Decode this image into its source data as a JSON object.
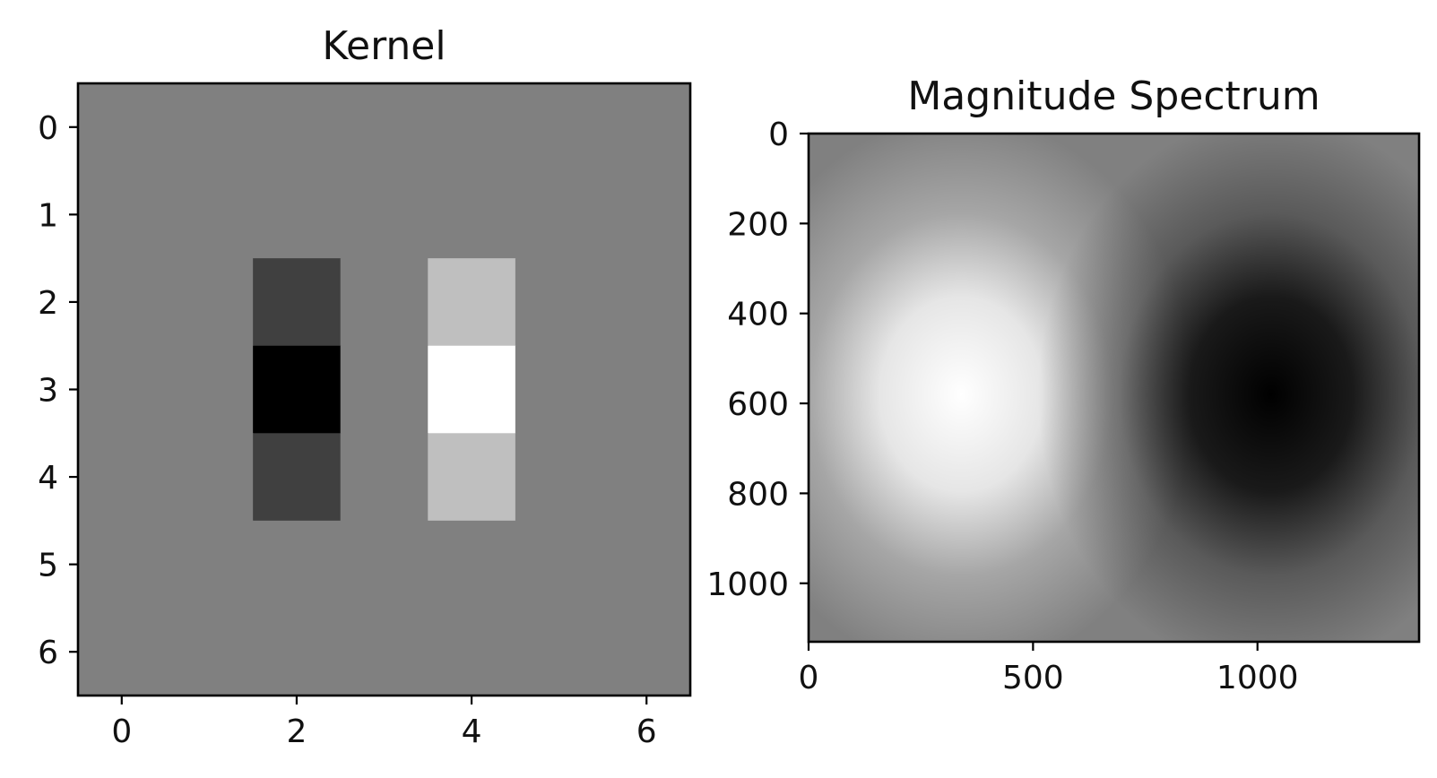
{
  "chart_data": [
    {
      "type": "heatmap",
      "title": "Kernel",
      "colormap": "gray",
      "value_range": [
        -2,
        2
      ],
      "values": [
        [
          0,
          0,
          0,
          0,
          0,
          0,
          0
        ],
        [
          0,
          0,
          0,
          0,
          0,
          0,
          0
        ],
        [
          0,
          0,
          -1,
          0,
          1,
          0,
          0
        ],
        [
          0,
          0,
          -2,
          0,
          2,
          0,
          0
        ],
        [
          0,
          0,
          -1,
          0,
          1,
          0,
          0
        ],
        [
          0,
          0,
          0,
          0,
          0,
          0,
          0
        ],
        [
          0,
          0,
          0,
          0,
          0,
          0,
          0
        ]
      ],
      "xlim": [
        -0.5,
        6.5
      ],
      "ylim": [
        6.5,
        -0.5
      ],
      "xticks": [
        0,
        2,
        4,
        6
      ],
      "yticks": [
        0,
        1,
        2,
        3,
        4,
        5,
        6
      ]
    },
    {
      "type": "heatmap",
      "title": "Magnitude Spectrum",
      "colormap": "gray",
      "width": 1360,
      "height": 1130,
      "background_level": 0.5,
      "blobs": [
        {
          "x": 340,
          "y": 580,
          "peak_level": 1.0
        },
        {
          "x": 1030,
          "y": 580,
          "peak_level": 0.0
        }
      ],
      "xlim": [
        0,
        1360
      ],
      "ylim": [
        1130,
        0
      ],
      "xticks": [
        0,
        500,
        1000
      ],
      "yticks": [
        0,
        200,
        400,
        600,
        800,
        1000
      ]
    }
  ]
}
